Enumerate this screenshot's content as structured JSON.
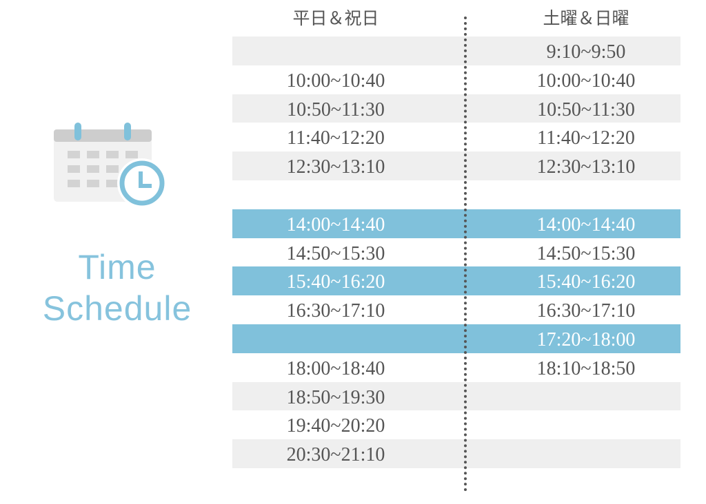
{
  "colors": {
    "accent": "#80c1db",
    "row_gray": "#efefef",
    "text": "#555555"
  },
  "icon": "calendar-clock-icon",
  "title": {
    "line1": "Time",
    "line2": "Schedule"
  },
  "headers": {
    "weekday": "平日＆祝日",
    "weekend": "土曜＆日曜"
  },
  "rows": [
    {
      "left": "",
      "right": "9:10~9:50",
      "style": "gray"
    },
    {
      "left": "10:00~10:40",
      "right": "10:00~10:40",
      "style": "white"
    },
    {
      "left": "10:50~11:30",
      "right": "10:50~11:30",
      "style": "gray"
    },
    {
      "left": "11:40~12:20",
      "right": "11:40~12:20",
      "style": "white"
    },
    {
      "left": "12:30~13:10",
      "right": "12:30~13:10",
      "style": "gray"
    },
    {
      "left": "",
      "right": "",
      "style": "white"
    },
    {
      "left": "14:00~14:40",
      "right": "14:00~14:40",
      "style": "blue"
    },
    {
      "left": "14:50~15:30",
      "right": "14:50~15:30",
      "style": "white"
    },
    {
      "left": "15:40~16:20",
      "right": "15:40~16:20",
      "style": "blue"
    },
    {
      "left": "16:30~17:10",
      "right": "16:30~17:10",
      "style": "white"
    },
    {
      "left": "",
      "right": "17:20~18:00",
      "style": "blue"
    },
    {
      "left": "18:00~18:40",
      "right": "18:10~18:50",
      "style": "white"
    },
    {
      "left": "18:50~19:30",
      "right": "",
      "style": "gray"
    },
    {
      "left": "19:40~20:20",
      "right": "",
      "style": "white"
    },
    {
      "left": "20:30~21:10",
      "right": "",
      "style": "gray"
    }
  ]
}
